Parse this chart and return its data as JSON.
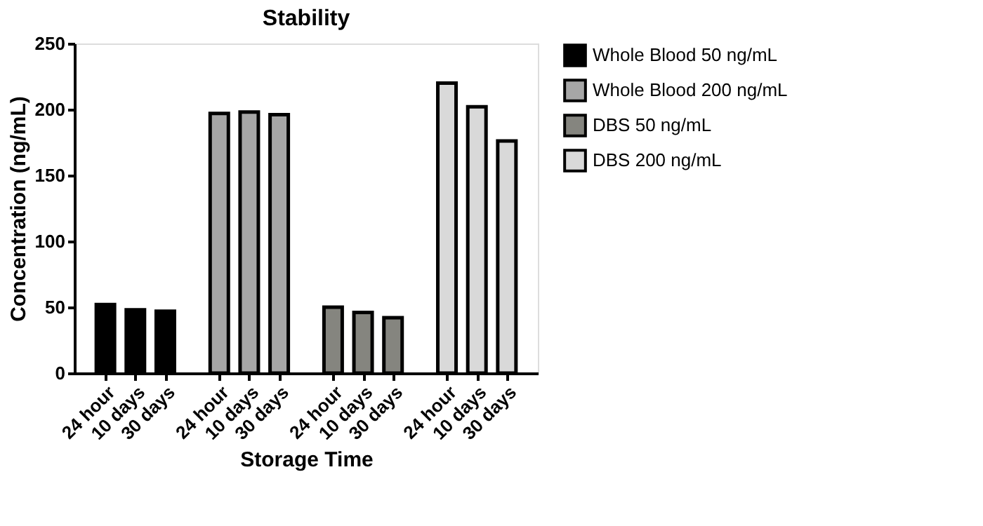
{
  "chart_data": {
    "type": "bar",
    "title": "Stability",
    "xlabel": "Storage Time",
    "ylabel": "Concentration (ng/mL)",
    "categories": [
      "24 hour",
      "10 days",
      "30 days",
      "24 hour",
      "10 days",
      "30 days",
      "24 hour",
      "10 days",
      "30 days",
      "24 hour",
      "10 days",
      "30 days"
    ],
    "series": [
      {
        "name": "Whole Blood 50 ng/mL",
        "color": "#000000",
        "values": [
          52,
          48,
          47,
          null,
          null,
          null,
          null,
          null,
          null,
          null,
          null,
          null
        ]
      },
      {
        "name": "Whole Blood 200 ng/mL",
        "color": "#a6a6a6",
        "values": [
          null,
          null,
          null,
          197,
          198,
          196,
          null,
          null,
          null,
          null,
          null,
          null
        ]
      },
      {
        "name": "DBS 50 ng/mL",
        "color": "#85857f",
        "values": [
          null,
          null,
          null,
          null,
          null,
          null,
          50,
          46,
          42,
          null,
          null,
          null
        ]
      },
      {
        "name": "DBS 200 ng/mL",
        "color": "#d9d9d9",
        "values": [
          null,
          null,
          null,
          null,
          null,
          null,
          null,
          null,
          null,
          220,
          202,
          176
        ]
      }
    ],
    "ylim": [
      0,
      250
    ],
    "yticks": [
      0,
      50,
      100,
      150,
      200,
      250
    ],
    "grid": false,
    "legend": "right"
  }
}
